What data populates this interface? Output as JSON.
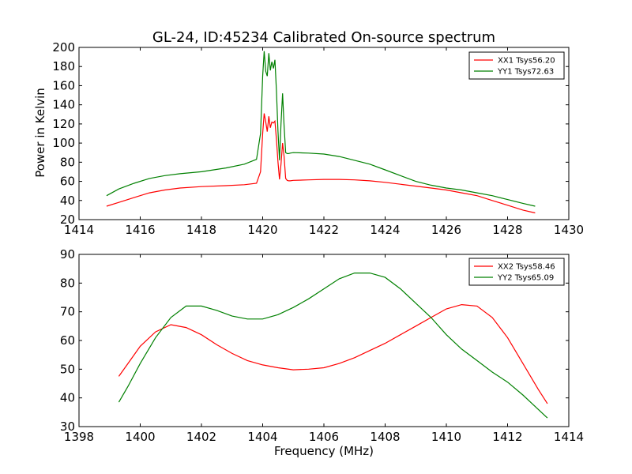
{
  "chart_data": [
    {
      "type": "line",
      "title": "GL-24, ID:45234 Calibrated On-source spectrum",
      "xlabel": "",
      "ylabel": "Power in Kelvin",
      "xlim": [
        1414,
        1430
      ],
      "ylim": [
        20,
        200
      ],
      "xticks": [
        "1414",
        "1416",
        "1418",
        "1420",
        "1422",
        "1424",
        "1426",
        "1428",
        "1430"
      ],
      "yticks": [
        "20",
        "40",
        "60",
        "80",
        "100",
        "120",
        "140",
        "160",
        "180",
        "200"
      ],
      "legend_position": "top-right",
      "series": [
        {
          "name": "XX1 Tsys56.20",
          "color": "#ff0000",
          "x": [
            1414.9,
            1415.3,
            1415.8,
            1416.3,
            1416.8,
            1417.3,
            1418.0,
            1418.8,
            1419.4,
            1419.8,
            1419.93,
            1420.0,
            1420.05,
            1420.1,
            1420.15,
            1420.2,
            1420.25,
            1420.3,
            1420.35,
            1420.4,
            1420.45,
            1420.5,
            1420.55,
            1420.6,
            1420.65,
            1420.7,
            1420.75,
            1420.8,
            1420.85,
            1420.9,
            1421.0,
            1421.5,
            1422.0,
            1422.5,
            1423.0,
            1423.5,
            1424.0,
            1424.5,
            1425.0,
            1425.5,
            1426.0,
            1426.5,
            1427.0,
            1427.5,
            1428.0,
            1428.5,
            1428.9
          ],
          "y": [
            34,
            38,
            43,
            48,
            51,
            53,
            54.5,
            55.5,
            56.5,
            58,
            70,
            110,
            131,
            122,
            112,
            128,
            116,
            122,
            121,
            123,
            104,
            80,
            62,
            78,
            100,
            86,
            63,
            61,
            60.5,
            60.5,
            61,
            61.5,
            62,
            62,
            61.5,
            60.5,
            59,
            57,
            55,
            53,
            51,
            48,
            45,
            40,
            35,
            30,
            27
          ]
        },
        {
          "name": "YY1 Tsys72.63",
          "color": "#008000",
          "x": [
            1414.9,
            1415.3,
            1415.8,
            1416.3,
            1416.8,
            1417.3,
            1418.0,
            1418.8,
            1419.4,
            1419.8,
            1419.93,
            1420.0,
            1420.05,
            1420.1,
            1420.15,
            1420.2,
            1420.25,
            1420.3,
            1420.35,
            1420.4,
            1420.45,
            1420.5,
            1420.55,
            1420.6,
            1420.65,
            1420.7,
            1420.75,
            1420.8,
            1420.85,
            1420.9,
            1421.0,
            1421.5,
            1422.0,
            1422.5,
            1423.0,
            1423.5,
            1424.0,
            1424.5,
            1425.0,
            1425.5,
            1426.0,
            1426.5,
            1427.0,
            1427.5,
            1428.0,
            1428.5,
            1428.9
          ],
          "y": [
            45,
            52,
            58,
            63,
            66,
            68,
            70,
            74,
            78,
            83,
            110,
            170,
            196,
            175,
            170,
            194,
            176,
            185,
            178,
            187,
            155,
            112,
            82,
            120,
            152,
            118,
            90,
            89,
            89,
            89.5,
            90,
            89.5,
            88.5,
            86,
            82,
            78,
            72,
            66,
            60,
            56,
            53,
            51,
            48,
            45,
            41,
            37,
            34
          ]
        }
      ]
    },
    {
      "type": "line",
      "title": "",
      "xlabel": "Frequency (MHz)",
      "ylabel": "",
      "xlim": [
        1398,
        1414
      ],
      "ylim": [
        30,
        90
      ],
      "xticks": [
        "1398",
        "1400",
        "1402",
        "1404",
        "1406",
        "1408",
        "1410",
        "1412",
        "1414"
      ],
      "yticks": [
        "30",
        "40",
        "50",
        "60",
        "70",
        "80",
        "90"
      ],
      "legend_position": "top-right",
      "series": [
        {
          "name": "XX2 Tsys58.46",
          "color": "#ff0000",
          "x": [
            1399.3,
            1399.6,
            1400.0,
            1400.5,
            1401.0,
            1401.5,
            1402.0,
            1402.5,
            1403.0,
            1403.5,
            1404.0,
            1404.5,
            1405.0,
            1405.5,
            1406.0,
            1406.5,
            1407.0,
            1407.5,
            1408.0,
            1408.5,
            1409.0,
            1409.5,
            1410.0,
            1410.5,
            1411.0,
            1411.5,
            1412.0,
            1412.5,
            1413.0,
            1413.3
          ],
          "y": [
            47.5,
            52,
            58,
            63,
            65.5,
            64.5,
            62,
            58.5,
            55.5,
            53,
            51.5,
            50.5,
            49.8,
            50,
            50.5,
            52,
            54,
            56.5,
            59,
            62,
            65,
            68,
            71,
            72.5,
            72,
            68,
            61,
            52,
            43,
            38
          ]
        },
        {
          "name": "YY2 Tsys65.09",
          "color": "#008000",
          "x": [
            1399.3,
            1399.6,
            1400.0,
            1400.5,
            1401.0,
            1401.5,
            1402.0,
            1402.5,
            1403.0,
            1403.5,
            1404.0,
            1404.5,
            1405.0,
            1405.5,
            1406.0,
            1406.5,
            1407.0,
            1407.5,
            1408.0,
            1408.5,
            1409.0,
            1409.5,
            1410.0,
            1410.5,
            1411.0,
            1411.5,
            1412.0,
            1412.5,
            1413.0,
            1413.3
          ],
          "y": [
            38.5,
            44,
            52,
            61,
            68,
            72,
            72,
            70.5,
            68.5,
            67.5,
            67.5,
            69,
            71.5,
            74.5,
            78,
            81.5,
            83.5,
            83.5,
            82,
            78,
            73,
            68,
            62,
            57,
            53,
            49,
            45.5,
            41,
            36,
            33
          ]
        }
      ]
    }
  ]
}
